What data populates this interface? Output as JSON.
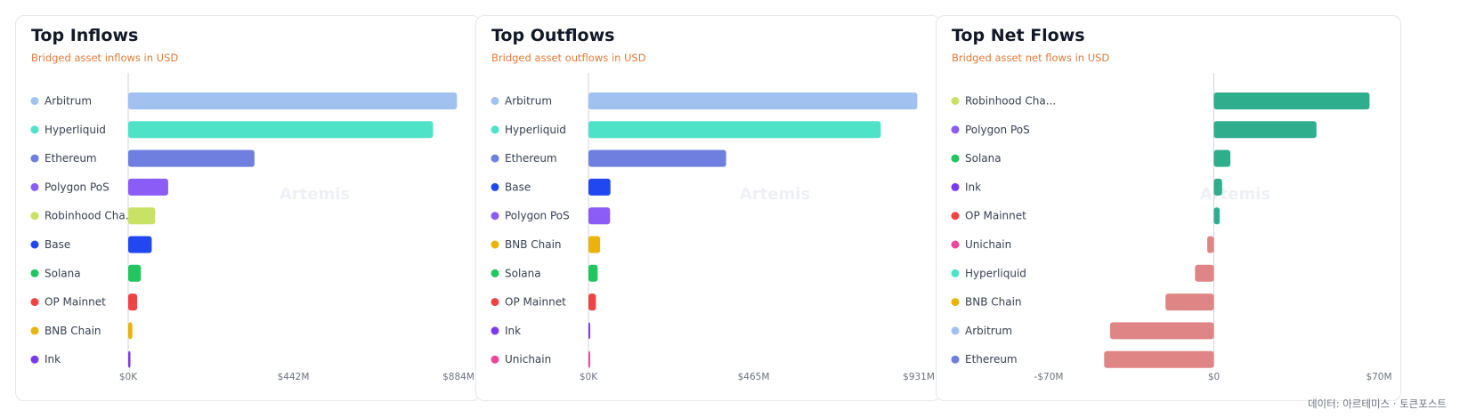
{
  "footer": "데이터: 아르테미스 · 토큰포스트",
  "watermark": "Artemis",
  "chart_data": [
    {
      "type": "bar",
      "orientation": "horizontal",
      "title": "Top Inflows",
      "subtitle": "Bridged asset inflows in USD",
      "categories": [
        "Arbitrum",
        "Hyperliquid",
        "Ethereum",
        "Polygon PoS",
        "Robinhood Cha...",
        "Base",
        "Solana",
        "OP Mainnet",
        "BNB Chain",
        "Ink"
      ],
      "values": [
        880,
        816,
        338,
        107,
        72,
        63,
        34,
        24,
        11,
        6
      ],
      "colors": [
        "#a1c2f0",
        "#4ee3c9",
        "#6f7fe0",
        "#8b5cf6",
        "#c9e265",
        "#2148f0",
        "#22c55e",
        "#ef4444",
        "#eab308",
        "#7c3aed"
      ],
      "xlim": [
        0,
        884
      ],
      "xticks": [
        "$0K",
        "$442M",
        "$884M"
      ],
      "unit": "M USD"
    },
    {
      "type": "bar",
      "orientation": "horizontal",
      "title": "Top Outflows",
      "subtitle": "Bridged asset outflows in USD",
      "categories": [
        "Arbitrum",
        "Hyperliquid",
        "Ethereum",
        "Base",
        "Polygon PoS",
        "BNB Chain",
        "Solana",
        "OP Mainnet",
        "Ink",
        "Unichain"
      ],
      "values": [
        927,
        824,
        388,
        62,
        61,
        33,
        26,
        21,
        4,
        3
      ],
      "colors": [
        "#a1c2f0",
        "#4ee3c9",
        "#6f7fe0",
        "#2148f0",
        "#8b5cf6",
        "#eab308",
        "#22c55e",
        "#ef4444",
        "#7c3aed",
        "#ec4899"
      ],
      "xlim": [
        0,
        931
      ],
      "xticks": [
        "$0K",
        "$465M",
        "$931M"
      ],
      "unit": "M USD"
    },
    {
      "type": "bar",
      "orientation": "horizontal",
      "title": "Top Net Flows",
      "subtitle": "Bridged asset net flows in USD",
      "categories": [
        "Robinhood Cha...",
        "Polygon PoS",
        "Solana",
        "Ink",
        "OP Mainnet",
        "Unichain",
        "Hyperliquid",
        "BNB Chain",
        "Arbitrum",
        "Ethereum"
      ],
      "values": [
        66,
        43.5,
        7,
        3.5,
        2.5,
        -2.8,
        -8,
        -20.5,
        -44,
        -46.5
      ],
      "colors": [
        "#c9e265",
        "#8b5cf6",
        "#22c55e",
        "#7c3aed",
        "#ef4444",
        "#ec4899",
        "#4ee3c9",
        "#eab308",
        "#a1c2f0",
        "#6f7fe0"
      ],
      "bar_colors": {
        "positive": "#2eae8c",
        "negative": "#e08585"
      },
      "xlim": [
        -70,
        70
      ],
      "xticks": [
        "-$70M",
        "$0",
        "$70M"
      ],
      "unit": "M USD"
    }
  ]
}
